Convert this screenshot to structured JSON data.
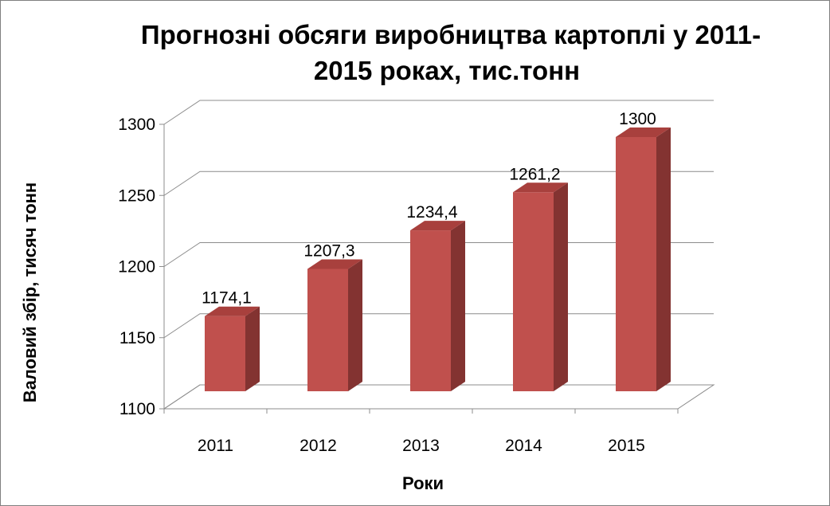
{
  "chart_data": {
    "type": "bar",
    "title_lines": [
      "Прогнозні обсяги виробництва картоплі у 2011-",
      "2015 роках, тис.тонн"
    ],
    "xlabel": "Роки",
    "ylabel": "Валовий збір, тисяч тонн",
    "categories": [
      "2011",
      "2012",
      "2013",
      "2014",
      "2015"
    ],
    "values": [
      1174.1,
      1207.3,
      1234.4,
      1261.2,
      1300
    ],
    "data_labels": [
      "1174,1",
      "1207,3",
      "1234,4",
      "1261,2",
      "1300"
    ],
    "yticks": [
      1100,
      1150,
      1200,
      1250,
      1300
    ],
    "ylim": [
      1100,
      1300
    ],
    "grid": true,
    "legend": false,
    "three_d": true,
    "colors": {
      "bar_front": "#c0504d",
      "bar_side": "#833331",
      "bar_top": "#a8403d",
      "grid": "#8c8c8c",
      "floor": "#ffffff"
    }
  }
}
